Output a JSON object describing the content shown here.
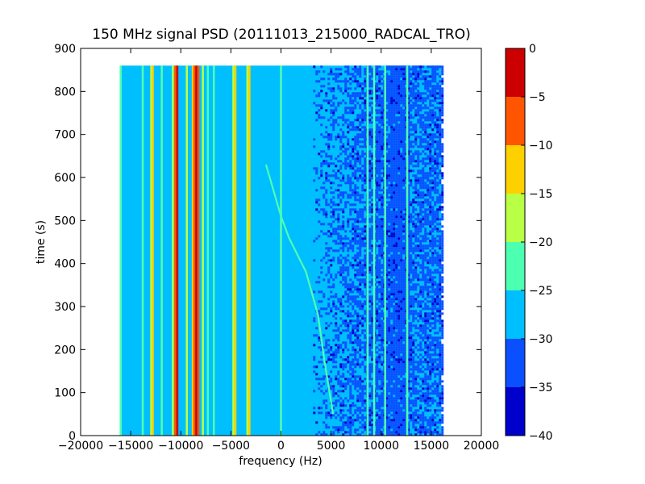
{
  "chart_data": {
    "type": "heatmap",
    "title": "150 MHz signal PSD (20111013_215000_RADCAL_TRO)",
    "xlabel": "frequency (Hz)",
    "ylabel": "time (s)",
    "xlim": [
      -20000,
      20000
    ],
    "ylim": [
      0,
      900
    ],
    "x_ticks": [
      -20000,
      -15000,
      -10000,
      -5000,
      0,
      5000,
      10000,
      15000,
      20000
    ],
    "y_ticks": [
      0,
      100,
      200,
      300,
      400,
      500,
      600,
      700,
      800,
      900
    ],
    "data_extent": {
      "freq": [
        -16000,
        16000
      ],
      "time": [
        0,
        860
      ]
    },
    "colorbar": {
      "range": [
        -40,
        0
      ],
      "ticks": [
        0,
        -5,
        -10,
        -15,
        -20,
        -25,
        -30,
        -35,
        -40
      ],
      "levels": [
        {
          "from": -40,
          "to": -35,
          "color": "#0000cd"
        },
        {
          "from": -35,
          "to": -30,
          "color": "#0a50ff"
        },
        {
          "from": -30,
          "to": -25,
          "color": "#00bfff"
        },
        {
          "from": -25,
          "to": -20,
          "color": "#4dffb0"
        },
        {
          "from": -20,
          "to": -15,
          "color": "#b8ff45"
        },
        {
          "from": -15,
          "to": -10,
          "color": "#ffd000"
        },
        {
          "from": -10,
          "to": -5,
          "color": "#ff5500"
        },
        {
          "from": -5,
          "to": 0,
          "color": "#cc0000"
        }
      ]
    },
    "background_level": -27.5,
    "noisy_band": [
      3200,
      16000
    ],
    "tones": [
      {
        "freq": -16000,
        "level": -22.5
      },
      {
        "freq": -13800,
        "level": -22.5
      },
      {
        "freq": -12950,
        "level": -17.5
      },
      {
        "freq": -12800,
        "level": -12.5
      },
      {
        "freq": -11900,
        "level": -22.5
      },
      {
        "freq": -10800,
        "level": -17.5
      },
      {
        "freq": -10550,
        "level": -7.5
      },
      {
        "freq": -10350,
        "level": -2.5
      },
      {
        "freq": -9400,
        "level": -17.5
      },
      {
        "freq": -8800,
        "level": -12.5
      },
      {
        "freq": -8650,
        "level": -7.5
      },
      {
        "freq": -8450,
        "level": -2.5
      },
      {
        "freq": -8250,
        "level": -7.5
      },
      {
        "freq": -7800,
        "level": -17.5
      },
      {
        "freq": -7300,
        "level": -22.5
      },
      {
        "freq": -6700,
        "level": -22.5
      },
      {
        "freq": -4750,
        "level": -17.5
      },
      {
        "freq": -4550,
        "level": -12.5
      },
      {
        "freq": -3350,
        "level": -17.5
      },
      {
        "freq": -3150,
        "level": -12.5
      },
      {
        "freq": 0,
        "level": -22.5
      },
      {
        "freq": 8650,
        "level": -22.5
      },
      {
        "freq": 9300,
        "level": -22.5
      },
      {
        "freq": 10400,
        "level": -22.5
      },
      {
        "freq": 12600,
        "level": -22.5
      }
    ],
    "drifting_tone": {
      "level": -22.5,
      "points": [
        {
          "freq": -1500,
          "time": 630
        },
        {
          "freq": -500,
          "time": 550
        },
        {
          "freq": 0,
          "time": 510
        },
        {
          "freq": 800,
          "time": 460
        },
        {
          "freq": 2500,
          "time": 380
        },
        {
          "freq": 3700,
          "time": 280
        },
        {
          "freq": 4300,
          "time": 180
        },
        {
          "freq": 5200,
          "time": 50
        }
      ]
    }
  }
}
